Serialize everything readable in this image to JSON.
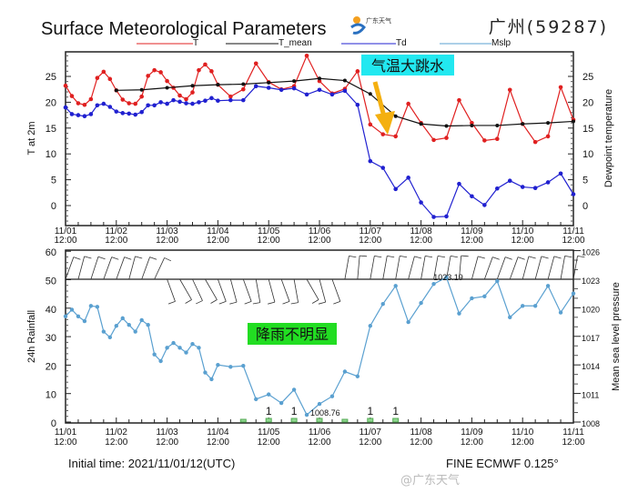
{
  "header": {
    "title": "Surface Meteorological Parameters",
    "logo_text": "广东天气",
    "station": "广州(59287)"
  },
  "footer": {
    "initial_time": "Initial time: 2021/11/01/12(UTC)",
    "model": "FINE ECMWF 0.125°",
    "watermark": "@广东天气"
  },
  "annotations": {
    "temp_drop": "气温大跳水",
    "no_rain": "降雨不明显"
  },
  "colors": {
    "T": "#e02020",
    "T_mean": "#111111",
    "Td": "#2020d0",
    "Mslp": "#5aa0d0",
    "rain": "#8fd88f",
    "temp_box": "#22e8f0",
    "rain_box": "#22dd22",
    "arrow": "#f4b010"
  },
  "chart_data": [
    {
      "type": "line",
      "title": "Surface Meteorological Parameters",
      "legend": [
        "T",
        "T_mean",
        "Td",
        "Mslp"
      ],
      "legend_position": "top",
      "xlabel": "",
      "ylabel": "T at 2m",
      "ylabel_right": "Dewpoint temperature",
      "ylim": [
        -4,
        30
      ],
      "yticks": [
        "0",
        "5",
        "10",
        "15",
        "20",
        "25"
      ],
      "x_unit": "hours since 2021/11/01 12:00 UTC",
      "xlim": [
        0,
        240
      ],
      "xticks": [
        {
          "d": "11/01",
          "t": "12:00"
        },
        {
          "d": "11/02",
          "t": "12:00"
        },
        {
          "d": "11/03",
          "t": "12:00"
        },
        {
          "d": "11/04",
          "t": "12:00"
        },
        {
          "d": "11/05",
          "t": "12:00"
        },
        {
          "d": "11/06",
          "t": "12:00"
        },
        {
          "d": "11/07",
          "t": "12:00"
        },
        {
          "d": "11/08",
          "t": "12:00"
        },
        {
          "d": "11/09",
          "t": "12:00"
        },
        {
          "d": "11/10",
          "t": "12:00"
        },
        {
          "d": "11/11",
          "t": "12:00"
        }
      ],
      "series": [
        {
          "name": "T",
          "x": [
            0,
            3,
            6,
            9,
            12,
            15,
            18,
            21,
            24,
            27,
            30,
            33,
            36,
            39,
            42,
            45,
            48,
            51,
            54,
            57,
            60,
            63,
            66,
            69,
            72,
            78,
            84,
            90,
            96,
            102,
            108,
            114,
            120,
            126,
            132,
            138,
            144,
            150,
            156,
            162,
            168,
            174,
            180,
            186,
            192,
            198,
            204,
            210,
            216,
            222,
            228,
            234,
            240
          ],
          "values": [
            23.2,
            21.2,
            19.8,
            19.5,
            20.6,
            24.7,
            25.9,
            24.5,
            22.3,
            20.5,
            19.8,
            19.7,
            21.1,
            25.1,
            26.2,
            25.8,
            24.1,
            22.8,
            21.3,
            20.6,
            21.9,
            26.2,
            27.3,
            26.0,
            23.4,
            21.1,
            22.5,
            27.5,
            23.9,
            22.5,
            23.1,
            29.0,
            24.1,
            21.7,
            22.6,
            26.0,
            15.7,
            13.8,
            13.4,
            19.7,
            16.0,
            12.7,
            13.1,
            20.4,
            16.0,
            12.6,
            12.9,
            22.4,
            15.8,
            12.3,
            13.4,
            22.9,
            16.6
          ]
        },
        {
          "name": "T_mean",
          "x": [
            24,
            36,
            48,
            60,
            72,
            84,
            96,
            108,
            120,
            132,
            144,
            156,
            168,
            180,
            192,
            204,
            216,
            228,
            240
          ],
          "values": [
            22.3,
            22.4,
            22.8,
            23.2,
            23.4,
            23.5,
            23.8,
            24.1,
            24.6,
            24.2,
            21.6,
            17.3,
            15.8,
            15.4,
            15.5,
            15.5,
            15.8,
            16.0,
            16.3
          ]
        },
        {
          "name": "Td",
          "x": [
            0,
            3,
            6,
            9,
            12,
            15,
            18,
            21,
            24,
            27,
            30,
            33,
            36,
            39,
            42,
            45,
            48,
            51,
            54,
            57,
            60,
            63,
            66,
            69,
            72,
            78,
            84,
            90,
            96,
            102,
            108,
            114,
            120,
            126,
            132,
            138,
            144,
            150,
            156,
            162,
            168,
            174,
            180,
            186,
            192,
            198,
            204,
            210,
            216,
            222,
            228,
            234,
            240
          ],
          "values": [
            19.0,
            17.7,
            17.5,
            17.3,
            17.7,
            19.4,
            19.7,
            19.1,
            18.2,
            17.9,
            17.8,
            17.6,
            18.1,
            19.4,
            19.4,
            20.0,
            19.7,
            20.4,
            20.1,
            19.8,
            19.7,
            20.0,
            20.3,
            20.8,
            20.3,
            20.4,
            20.4,
            23.1,
            22.8,
            22.4,
            22.7,
            21.5,
            22.4,
            21.5,
            22.2,
            19.5,
            8.6,
            7.3,
            3.2,
            5.4,
            0.6,
            -2.2,
            -2.1,
            4.2,
            1.8,
            0.1,
            3.3,
            4.8,
            3.6,
            3.4,
            4.5,
            6.2,
            2.2
          ]
        }
      ]
    },
    {
      "type": "line",
      "ylabel": "24h Rainfall",
      "ylabel_right": "Mean sea level pressure",
      "ylim": [
        0,
        60
      ],
      "yticks": [
        "0",
        "10",
        "20",
        "30",
        "40",
        "50",
        "60"
      ],
      "ylim_right": [
        1008,
        1026
      ],
      "yticks_right": [
        "1008",
        "1011",
        "1014",
        "1017",
        "1020",
        "1023",
        "1026"
      ],
      "xlim": [
        0,
        240
      ],
      "max_label": "1023.19",
      "min_label": "1008.76",
      "series": [
        {
          "name": "Mslp",
          "axis": "right",
          "x": [
            0,
            3,
            6,
            9,
            12,
            15,
            18,
            21,
            24,
            27,
            30,
            33,
            36,
            39,
            42,
            45,
            48,
            51,
            54,
            57,
            60,
            63,
            66,
            69,
            72,
            78,
            84,
            90,
            96,
            102,
            108,
            114,
            120,
            126,
            132,
            138,
            144,
            150,
            156,
            162,
            168,
            174,
            180,
            186,
            192,
            198,
            204,
            210,
            216,
            222,
            228,
            234,
            240
          ],
          "values": [
            1019.1,
            1019.8,
            1019.1,
            1018.6,
            1020.2,
            1020.1,
            1017.5,
            1016.9,
            1018.1,
            1018.9,
            1018.2,
            1017.5,
            1018.7,
            1018.2,
            1015.1,
            1014.4,
            1015.8,
            1016.3,
            1015.8,
            1015.3,
            1016.2,
            1015.8,
            1013.2,
            1012.5,
            1014.0,
            1013.8,
            1013.9,
            1010.4,
            1010.9,
            1010.0,
            1011.4,
            1008.76,
            1009.9,
            1010.7,
            1013.3,
            1012.8,
            1018.1,
            1020.4,
            1022.3,
            1018.5,
            1020.5,
            1022.5,
            1023.19,
            1019.4,
            1021.0,
            1021.2,
            1022.8,
            1019.0,
            1020.2,
            1020.2,
            1022.3,
            1019.5,
            1021.5
          ]
        },
        {
          "name": "24h Rainfall",
          "type": "bar",
          "x": [
            84,
            96,
            108,
            120,
            132,
            144,
            156
          ],
          "values": [
            0.3,
            1,
            1,
            1,
            0.3,
            1,
            1
          ],
          "labels": [
            "",
            "1",
            "1",
            "",
            "",
            "1",
            "1"
          ]
        }
      ],
      "wind_barbs": {
        "x": [
          0,
          6,
          12,
          18,
          24,
          30,
          36,
          42,
          48,
          54,
          60,
          66,
          72,
          78,
          84,
          90,
          96,
          102,
          108,
          114,
          120,
          126,
          132,
          138,
          144,
          150,
          156,
          162,
          168,
          174,
          180,
          186,
          192,
          198,
          204,
          210,
          216,
          222,
          228,
          234,
          240
        ],
        "direction_deg": [
          20,
          15,
          18,
          20,
          20,
          15,
          20,
          25,
          160,
          150,
          155,
          150,
          160,
          165,
          160,
          170,
          165,
          160,
          170,
          150,
          165,
          160,
          10,
          5,
          10,
          10,
          10,
          15,
          10,
          10,
          10,
          5,
          15,
          20,
          20,
          20,
          15,
          15,
          15,
          10,
          10
        ]
      }
    }
  ]
}
